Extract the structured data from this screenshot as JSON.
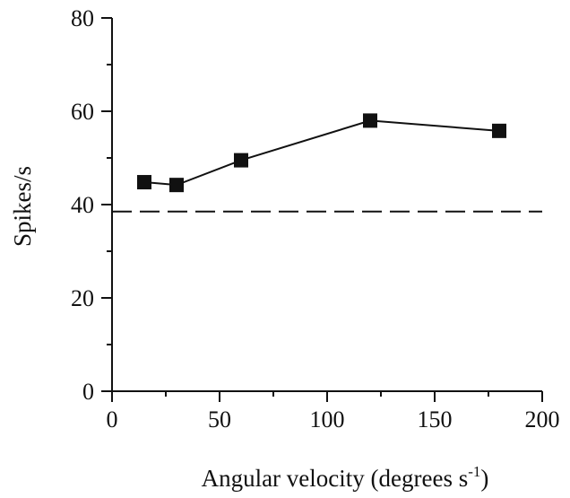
{
  "chart_data": {
    "type": "line",
    "xlabel": "Angular velocity (degrees s",
    "xlabel_sup": "-1",
    "xlabel_close": ")",
    "ylabel": "Spikes/s",
    "xlim": [
      0,
      200
    ],
    "ylim": [
      0,
      80
    ],
    "xticks": [
      0,
      50,
      100,
      150,
      200
    ],
    "yticks": [
      0,
      20,
      40,
      60,
      80
    ],
    "xtick_labels": [
      "0",
      "50",
      "100",
      "150",
      "200"
    ],
    "ytick_labels": [
      "0",
      "20",
      "40",
      "60",
      "80"
    ],
    "grid": false,
    "series": [
      {
        "x": [
          15,
          30,
          60,
          120,
          180
        ],
        "y": [
          44.8,
          44.2,
          49.5,
          58.0,
          55.8
        ],
        "marker": "square",
        "color": "#111111"
      }
    ],
    "reference_lines": [
      {
        "orientation": "horizontal",
        "y": 38.5,
        "style": "dashed",
        "color": "#111111"
      }
    ]
  }
}
